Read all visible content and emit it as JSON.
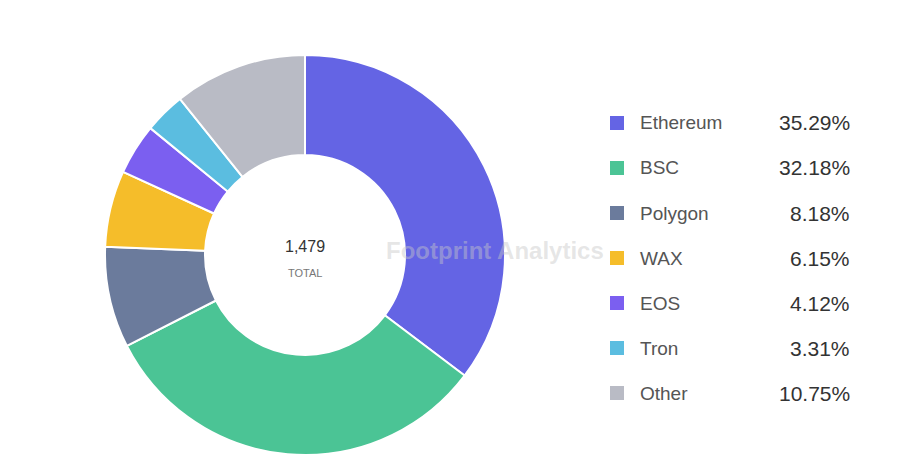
{
  "chart_data": {
    "type": "pie",
    "categories": [
      "Ethereum",
      "BSC",
      "Polygon",
      "WAX",
      "EOS",
      "Tron",
      "Other"
    ],
    "values": [
      35.29,
      32.18,
      8.18,
      6.15,
      4.12,
      3.31,
      10.75
    ],
    "value_labels": [
      "35.29%",
      "32.18%",
      "8.18%",
      "6.15%",
      "4.12%",
      "3.31%",
      "10.75%"
    ],
    "colors": [
      "#6464e4",
      "#4bc495",
      "#6b7b9c",
      "#f5bd2a",
      "#7b5ff0",
      "#5bbde0",
      "#b9bbc5"
    ],
    "center_value": {
      "value": 1479,
      "label": "1,479"
    },
    "center_label": "TOTAL",
    "watermark": "Footprint Analytics",
    "legend": "right"
  }
}
